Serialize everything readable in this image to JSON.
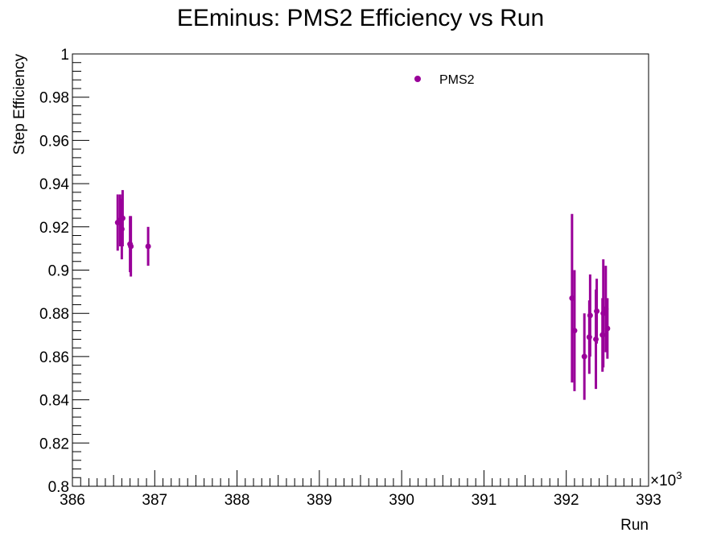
{
  "chart_data": {
    "type": "scatter",
    "title": "EEminus: PMS2 Efficiency vs Run",
    "xlabel": "Run",
    "ylabel": "Step Efficiency",
    "x_multiplier_label": "×10",
    "x_multiplier_exp": "3",
    "xlim": [
      386,
      393
    ],
    "ylim": [
      0.8,
      1.0
    ],
    "x_ticks": [
      386,
      387,
      388,
      389,
      390,
      391,
      392,
      393
    ],
    "x_tick_labels": [
      "386",
      "387",
      "388",
      "389",
      "390",
      "391",
      "392",
      "393"
    ],
    "y_ticks": [
      0.8,
      0.82,
      0.84,
      0.86,
      0.88,
      0.9,
      0.92,
      0.94,
      0.96,
      0.98,
      1.0
    ],
    "y_tick_labels": [
      "0.8",
      "0.82",
      "0.84",
      "0.86",
      "0.88",
      "0.9",
      "0.92",
      "0.94",
      "0.96",
      "0.98",
      "1"
    ],
    "legend_position": "top-center",
    "grid": false,
    "series": [
      {
        "name": "PMS2",
        "color": "#990099",
        "points": [
          {
            "x": 386.55,
            "y": 0.922,
            "err": 0.013
          },
          {
            "x": 386.58,
            "y": 0.923,
            "err": 0.012
          },
          {
            "x": 386.6,
            "y": 0.919,
            "err": 0.014
          },
          {
            "x": 386.61,
            "y": 0.924,
            "err": 0.013
          },
          {
            "x": 386.7,
            "y": 0.912,
            "err": 0.013
          },
          {
            "x": 386.71,
            "y": 0.911,
            "err": 0.014
          },
          {
            "x": 386.92,
            "y": 0.911,
            "err": 0.009
          },
          {
            "x": 392.07,
            "y": 0.887,
            "err": 0.039
          },
          {
            "x": 392.1,
            "y": 0.872,
            "err": 0.028
          },
          {
            "x": 392.22,
            "y": 0.86,
            "err": 0.02
          },
          {
            "x": 392.28,
            "y": 0.869,
            "err": 0.017
          },
          {
            "x": 392.29,
            "y": 0.879,
            "err": 0.019
          },
          {
            "x": 392.36,
            "y": 0.868,
            "err": 0.023
          },
          {
            "x": 392.37,
            "y": 0.881,
            "err": 0.015
          },
          {
            "x": 392.44,
            "y": 0.87,
            "err": 0.017
          },
          {
            "x": 392.45,
            "y": 0.88,
            "err": 0.025
          },
          {
            "x": 392.48,
            "y": 0.882,
            "err": 0.02
          },
          {
            "x": 392.5,
            "y": 0.873,
            "err": 0.014
          }
        ]
      }
    ]
  }
}
